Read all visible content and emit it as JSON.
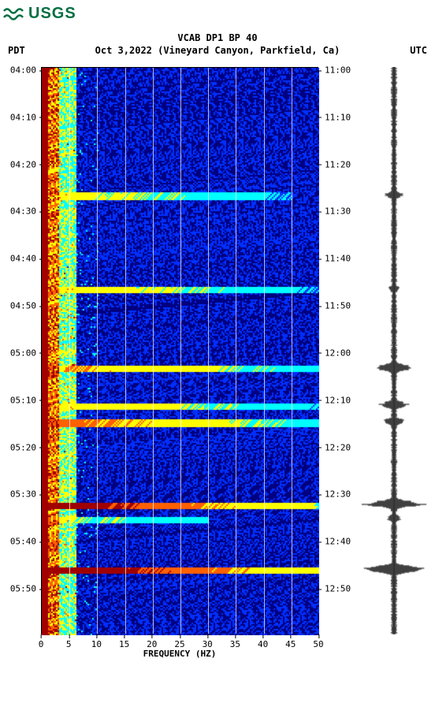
{
  "logo": {
    "text": "USGS",
    "color": "#006f41"
  },
  "header": {
    "title": "VCAB DP1 BP 40",
    "left_tz": "PDT",
    "date": "Oct 3,2022",
    "location": "(Vineyard Canyon, Parkfield, Ca)",
    "right_tz": "UTC"
  },
  "spectrogram": {
    "type": "spectrogram",
    "xlim": [
      0,
      50
    ],
    "xlabel": "FREQUENCY (HZ)",
    "xticks": [
      0,
      5,
      10,
      15,
      20,
      25,
      30,
      35,
      40,
      45,
      50
    ],
    "gridlines_x": [
      5,
      10,
      15,
      20,
      25,
      30,
      35,
      40,
      45
    ],
    "left_ticks": [
      "04:00",
      "04:10",
      "04:20",
      "04:30",
      "04:40",
      "04:50",
      "05:00",
      "05:10",
      "05:20",
      "05:30",
      "05:40",
      "05:50"
    ],
    "right_ticks": [
      "11:00",
      "11:10",
      "11:20",
      "11:30",
      "11:40",
      "11:50",
      "12:00",
      "12:10",
      "12:20",
      "12:30",
      "12:40",
      "12:50"
    ],
    "tick_positions": [
      0,
      1,
      2,
      3,
      4,
      5,
      6,
      7,
      8,
      9,
      10,
      11
    ],
    "tick_total": 12,
    "background_color": "#0000a0",
    "events": [
      {
        "t": 0.225,
        "intensity": 0.55,
        "width": 0.9
      },
      {
        "t": 0.39,
        "intensity": 0.6,
        "width": 1.0
      },
      {
        "t": 0.53,
        "intensity": 0.7,
        "width": 1.0
      },
      {
        "t": 0.595,
        "intensity": 0.65,
        "width": 1.0
      },
      {
        "t": 0.625,
        "intensity": 0.75,
        "width": 1.0
      },
      {
        "t": 0.77,
        "intensity": 0.95,
        "width": 1.0
      },
      {
        "t": 0.795,
        "intensity": 0.5,
        "width": 0.6
      },
      {
        "t": 0.885,
        "intensity": 1.0,
        "width": 1.0
      }
    ],
    "colormap": {
      "low": "#000080",
      "mid_low": "#0030ff",
      "mid": "#00ffff",
      "mid_high": "#ffff00",
      "high": "#ff6000",
      "peak": "#a00000"
    }
  },
  "seismogram": {
    "color": "#000000",
    "events": [
      {
        "t": 0.225,
        "amp": 0.25
      },
      {
        "t": 0.39,
        "amp": 0.15
      },
      {
        "t": 0.53,
        "amp": 0.6
      },
      {
        "t": 0.595,
        "amp": 0.4
      },
      {
        "t": 0.625,
        "amp": 0.35
      },
      {
        "t": 0.77,
        "amp": 0.9
      },
      {
        "t": 0.795,
        "amp": 0.2
      },
      {
        "t": 0.885,
        "amp": 1.0
      }
    ]
  },
  "fonts": {
    "tick_fontsize": 11,
    "title_fontsize": 12
  }
}
